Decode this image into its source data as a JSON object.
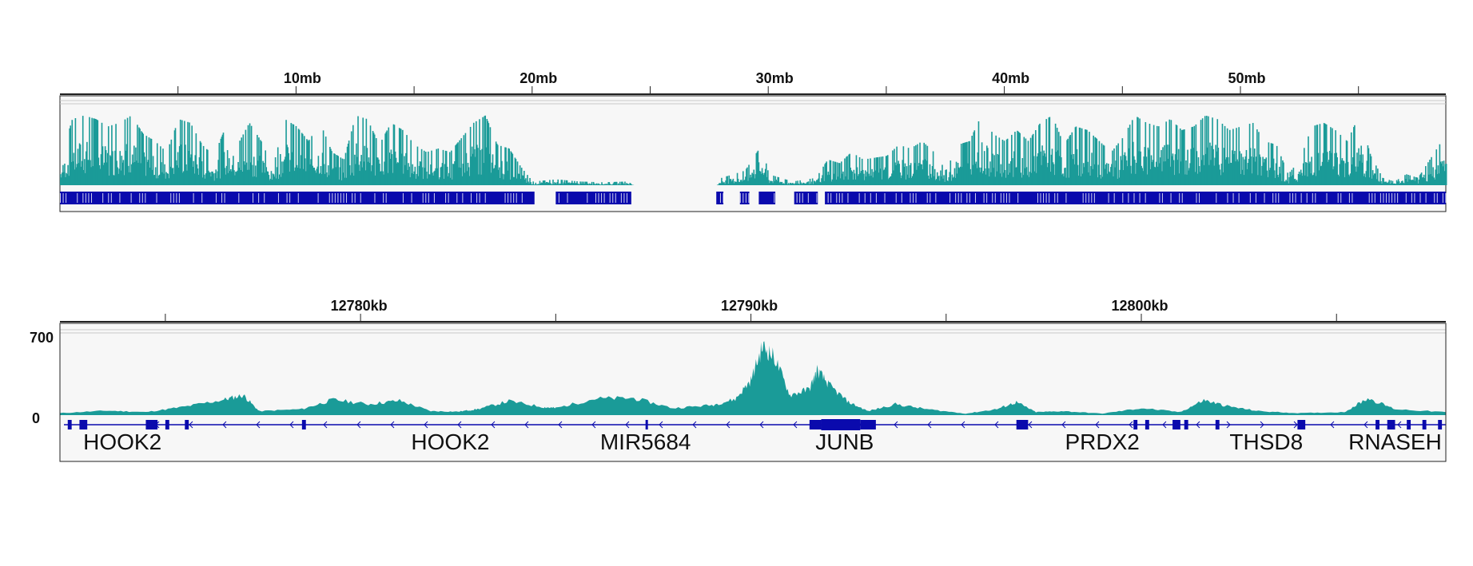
{
  "colors": {
    "coverage": "#1a9b98",
    "genes": "#0a0aad",
    "track_bg": "#f7f7f7",
    "border": "#222222",
    "grid": "#c8c8c8"
  },
  "chart_data": [
    {
      "type": "area",
      "name_visible": "",
      "x_unit": "mb",
      "xlim": [
        0,
        58.7
      ],
      "ticks": [
        {
          "value": 10,
          "label": "10mb"
        },
        {
          "value": 20,
          "label": "20mb"
        },
        {
          "value": 30,
          "label": "30mb"
        },
        {
          "value": 40,
          "label": "40mb"
        },
        {
          "value": 50,
          "label": "50mb"
        }
      ],
      "minor_ticks": [
        5,
        15,
        25,
        35,
        45,
        55
      ],
      "coverage_profile": [
        {
          "x": 0.0,
          "y": 0.35
        },
        {
          "x": 0.5,
          "y": 0.9
        },
        {
          "x": 1.0,
          "y": 0.95
        },
        {
          "x": 1.5,
          "y": 0.9
        },
        {
          "x": 2.0,
          "y": 0.8
        },
        {
          "x": 2.5,
          "y": 0.85
        },
        {
          "x": 3.0,
          "y": 0.95
        },
        {
          "x": 3.5,
          "y": 0.7
        },
        {
          "x": 4.0,
          "y": 0.6
        },
        {
          "x": 4.5,
          "y": 0.45
        },
        {
          "x": 5.0,
          "y": 0.9
        },
        {
          "x": 5.5,
          "y": 0.85
        },
        {
          "x": 6.0,
          "y": 0.55
        },
        {
          "x": 6.5,
          "y": 0.4
        },
        {
          "x": 7.0,
          "y": 0.8
        },
        {
          "x": 7.5,
          "y": 0.55
        },
        {
          "x": 8.0,
          "y": 0.85
        },
        {
          "x": 8.5,
          "y": 0.6
        },
        {
          "x": 9.0,
          "y": 0.25
        },
        {
          "x": 9.5,
          "y": 0.9
        },
        {
          "x": 10.0,
          "y": 0.8
        },
        {
          "x": 10.5,
          "y": 0.6
        },
        {
          "x": 11.0,
          "y": 0.85
        },
        {
          "x": 11.5,
          "y": 0.45
        },
        {
          "x": 12.0,
          "y": 0.35
        },
        {
          "x": 12.5,
          "y": 0.95
        },
        {
          "x": 13.0,
          "y": 0.9
        },
        {
          "x": 13.5,
          "y": 0.55
        },
        {
          "x": 14.0,
          "y": 0.85
        },
        {
          "x": 14.5,
          "y": 0.75
        },
        {
          "x": 15.0,
          "y": 0.55
        },
        {
          "x": 15.5,
          "y": 0.45
        },
        {
          "x": 16.0,
          "y": 0.5
        },
        {
          "x": 16.5,
          "y": 0.45
        },
        {
          "x": 17.0,
          "y": 0.65
        },
        {
          "x": 17.5,
          "y": 0.85
        },
        {
          "x": 18.0,
          "y": 0.95
        },
        {
          "x": 18.5,
          "y": 0.55
        },
        {
          "x": 19.0,
          "y": 0.5
        },
        {
          "x": 19.5,
          "y": 0.25
        },
        {
          "x": 20.0,
          "y": 0.05
        },
        {
          "x": 21.0,
          "y": 0.08
        },
        {
          "x": 22.0,
          "y": 0.05
        },
        {
          "x": 23.0,
          "y": 0.04
        },
        {
          "x": 24.0,
          "y": 0.05
        },
        {
          "x": 24.3,
          "y": 0.0
        },
        {
          "x": 27.8,
          "y": 0.0
        },
        {
          "x": 28.0,
          "y": 0.1
        },
        {
          "x": 29.0,
          "y": 0.2
        },
        {
          "x": 29.7,
          "y": 0.55
        },
        {
          "x": 30.0,
          "y": 0.15
        },
        {
          "x": 31.0,
          "y": 0.05
        },
        {
          "x": 32.0,
          "y": 0.1
        },
        {
          "x": 32.5,
          "y": 0.35
        },
        {
          "x": 33.0,
          "y": 0.3
        },
        {
          "x": 33.5,
          "y": 0.45
        },
        {
          "x": 34.0,
          "y": 0.35
        },
        {
          "x": 35.0,
          "y": 0.4
        },
        {
          "x": 35.5,
          "y": 0.55
        },
        {
          "x": 36.0,
          "y": 0.5
        },
        {
          "x": 36.5,
          "y": 0.6
        },
        {
          "x": 37.0,
          "y": 0.45
        },
        {
          "x": 37.5,
          "y": 0.2
        },
        {
          "x": 38.0,
          "y": 0.55
        },
        {
          "x": 38.5,
          "y": 0.6
        },
        {
          "x": 39.0,
          "y": 0.95
        },
        {
          "x": 39.5,
          "y": 0.7
        },
        {
          "x": 40.0,
          "y": 0.6
        },
        {
          "x": 40.5,
          "y": 0.75
        },
        {
          "x": 41.0,
          "y": 0.6
        },
        {
          "x": 41.5,
          "y": 0.85
        },
        {
          "x": 42.0,
          "y": 0.95
        },
        {
          "x": 42.5,
          "y": 0.55
        },
        {
          "x": 43.0,
          "y": 0.8
        },
        {
          "x": 43.5,
          "y": 0.75
        },
        {
          "x": 44.0,
          "y": 0.6
        },
        {
          "x": 44.5,
          "y": 0.45
        },
        {
          "x": 45.0,
          "y": 0.65
        },
        {
          "x": 45.5,
          "y": 0.95
        },
        {
          "x": 46.0,
          "y": 0.85
        },
        {
          "x": 46.5,
          "y": 0.8
        },
        {
          "x": 47.0,
          "y": 0.9
        },
        {
          "x": 47.5,
          "y": 0.75
        },
        {
          "x": 48.0,
          "y": 0.8
        },
        {
          "x": 48.5,
          "y": 0.95
        },
        {
          "x": 49.0,
          "y": 0.9
        },
        {
          "x": 49.5,
          "y": 0.75
        },
        {
          "x": 50.0,
          "y": 0.8
        },
        {
          "x": 50.5,
          "y": 0.85
        },
        {
          "x": 51.0,
          "y": 0.6
        },
        {
          "x": 51.5,
          "y": 0.55
        },
        {
          "x": 52.0,
          "y": 0.15
        },
        {
          "x": 52.5,
          "y": 0.35
        },
        {
          "x": 53.0,
          "y": 0.8
        },
        {
          "x": 53.5,
          "y": 0.85
        },
        {
          "x": 54.0,
          "y": 0.75
        },
        {
          "x": 54.5,
          "y": 0.6
        },
        {
          "x": 55.0,
          "y": 0.95
        },
        {
          "x": 55.5,
          "y": 0.4
        },
        {
          "x": 56.0,
          "y": 0.1
        },
        {
          "x": 56.5,
          "y": 0.05
        },
        {
          "x": 57.0,
          "y": 0.15
        },
        {
          "x": 57.5,
          "y": 0.1
        },
        {
          "x": 58.0,
          "y": 0.35
        },
        {
          "x": 58.7,
          "y": 0.7
        }
      ],
      "gene_blocks": [
        [
          0.0,
          20.1
        ],
        [
          21.0,
          24.2
        ],
        [
          27.8,
          28.1
        ],
        [
          28.8,
          29.2
        ],
        [
          29.6,
          30.3
        ],
        [
          31.1,
          32.1
        ],
        [
          32.4,
          58.7
        ]
      ]
    },
    {
      "type": "area",
      "x_unit": "kb",
      "xlim": [
        12772.3,
        12807.8
      ],
      "y_ticks": [
        {
          "value": 700,
          "label": "700"
        },
        {
          "value": 0,
          "label": "0"
        }
      ],
      "ylim": [
        0,
        800
      ],
      "ticks": [
        {
          "value": 12780,
          "label": "12780kb"
        },
        {
          "value": 12790,
          "label": "12790kb"
        },
        {
          "value": 12800,
          "label": "12800kb"
        }
      ],
      "minor_ticks": [
        12775,
        12785,
        12795,
        12805
      ],
      "coverage_profile": [
        {
          "x": 12772.3,
          "y": 20
        },
        {
          "x": 12773.5,
          "y": 45
        },
        {
          "x": 12774.5,
          "y": 30
        },
        {
          "x": 12775.5,
          "y": 85
        },
        {
          "x": 12776.5,
          "y": 155
        },
        {
          "x": 12777.0,
          "y": 200
        },
        {
          "x": 12777.4,
          "y": 40
        },
        {
          "x": 12778.5,
          "y": 60
        },
        {
          "x": 12779.3,
          "y": 155
        },
        {
          "x": 12780.2,
          "y": 110
        },
        {
          "x": 12781.0,
          "y": 145
        },
        {
          "x": 12781.8,
          "y": 40
        },
        {
          "x": 12782.5,
          "y": 35
        },
        {
          "x": 12783.0,
          "y": 60
        },
        {
          "x": 12783.8,
          "y": 140
        },
        {
          "x": 12784.7,
          "y": 80
        },
        {
          "x": 12785.0,
          "y": 70
        },
        {
          "x": 12786.0,
          "y": 165
        },
        {
          "x": 12787.0,
          "y": 170
        },
        {
          "x": 12788.0,
          "y": 70
        },
        {
          "x": 12789.0,
          "y": 100
        },
        {
          "x": 12789.6,
          "y": 160
        },
        {
          "x": 12790.0,
          "y": 350
        },
        {
          "x": 12790.3,
          "y": 690
        },
        {
          "x": 12790.6,
          "y": 580
        },
        {
          "x": 12791.0,
          "y": 200
        },
        {
          "x": 12791.5,
          "y": 260
        },
        {
          "x": 12791.7,
          "y": 450
        },
        {
          "x": 12792.0,
          "y": 300
        },
        {
          "x": 12792.5,
          "y": 130
        },
        {
          "x": 12793.0,
          "y": 40
        },
        {
          "x": 12793.7,
          "y": 110
        },
        {
          "x": 12794.5,
          "y": 60
        },
        {
          "x": 12795.5,
          "y": 15
        },
        {
          "x": 12796.3,
          "y": 60
        },
        {
          "x": 12796.8,
          "y": 130
        },
        {
          "x": 12797.3,
          "y": 30
        },
        {
          "x": 12798.0,
          "y": 40
        },
        {
          "x": 12799.0,
          "y": 15
        },
        {
          "x": 12800.0,
          "y": 70
        },
        {
          "x": 12801.0,
          "y": 30
        },
        {
          "x": 12801.6,
          "y": 150
        },
        {
          "x": 12802.2,
          "y": 90
        },
        {
          "x": 12803.0,
          "y": 40
        },
        {
          "x": 12804.0,
          "y": 20
        },
        {
          "x": 12805.2,
          "y": 30
        },
        {
          "x": 12805.8,
          "y": 170
        },
        {
          "x": 12806.5,
          "y": 60
        },
        {
          "x": 12807.8,
          "y": 30
        }
      ],
      "genes": [
        {
          "label": "HOOK2",
          "start": 12772.5,
          "end": 12775.0,
          "label_at": 12773.9
        },
        {
          "label": "HOOK2",
          "start": 12775.5,
          "end": 12784.0,
          "label_at": 12782.3
        },
        {
          "label": "MIR5684",
          "start": 12787.0,
          "end": 12787.5,
          "label_at": 12787.3
        },
        {
          "label": "JUNB",
          "start": 12791.5,
          "end": 12793.2,
          "label_at": 12792.4
        },
        {
          "label": "PRDX2",
          "start": 12796.8,
          "end": 12801.0,
          "label_at": 12799.0
        },
        {
          "label": "THSD8",
          "start": 12801.9,
          "end": 12804.2,
          "label_at": 12803.2
        },
        {
          "label": "RNASEH",
          "start": 12806.0,
          "end": 12807.8,
          "label_at": 12806.5
        }
      ],
      "exons": [
        [
          12772.5,
          12772.6
        ],
        [
          12772.8,
          12773.0
        ],
        [
          12774.5,
          12774.8
        ],
        [
          12775.0,
          12775.1
        ],
        [
          12775.5,
          12775.6
        ],
        [
          12778.5,
          12778.6
        ],
        [
          12787.3,
          12787.35
        ],
        [
          12791.5,
          12791.8
        ],
        [
          12791.8,
          12792.8
        ],
        [
          12792.8,
          12793.2
        ],
        [
          12796.8,
          12797.1
        ],
        [
          12799.8,
          12799.9
        ],
        [
          12800.1,
          12800.2
        ],
        [
          12800.8,
          12801.0
        ],
        [
          12801.1,
          12801.2
        ],
        [
          12801.9,
          12802.0
        ],
        [
          12804.0,
          12804.2
        ],
        [
          12806.0,
          12806.1
        ],
        [
          12806.3,
          12806.5
        ],
        [
          12806.8,
          12806.9
        ],
        [
          12807.2,
          12807.3
        ],
        [
          12807.6,
          12807.7
        ]
      ]
    }
  ]
}
